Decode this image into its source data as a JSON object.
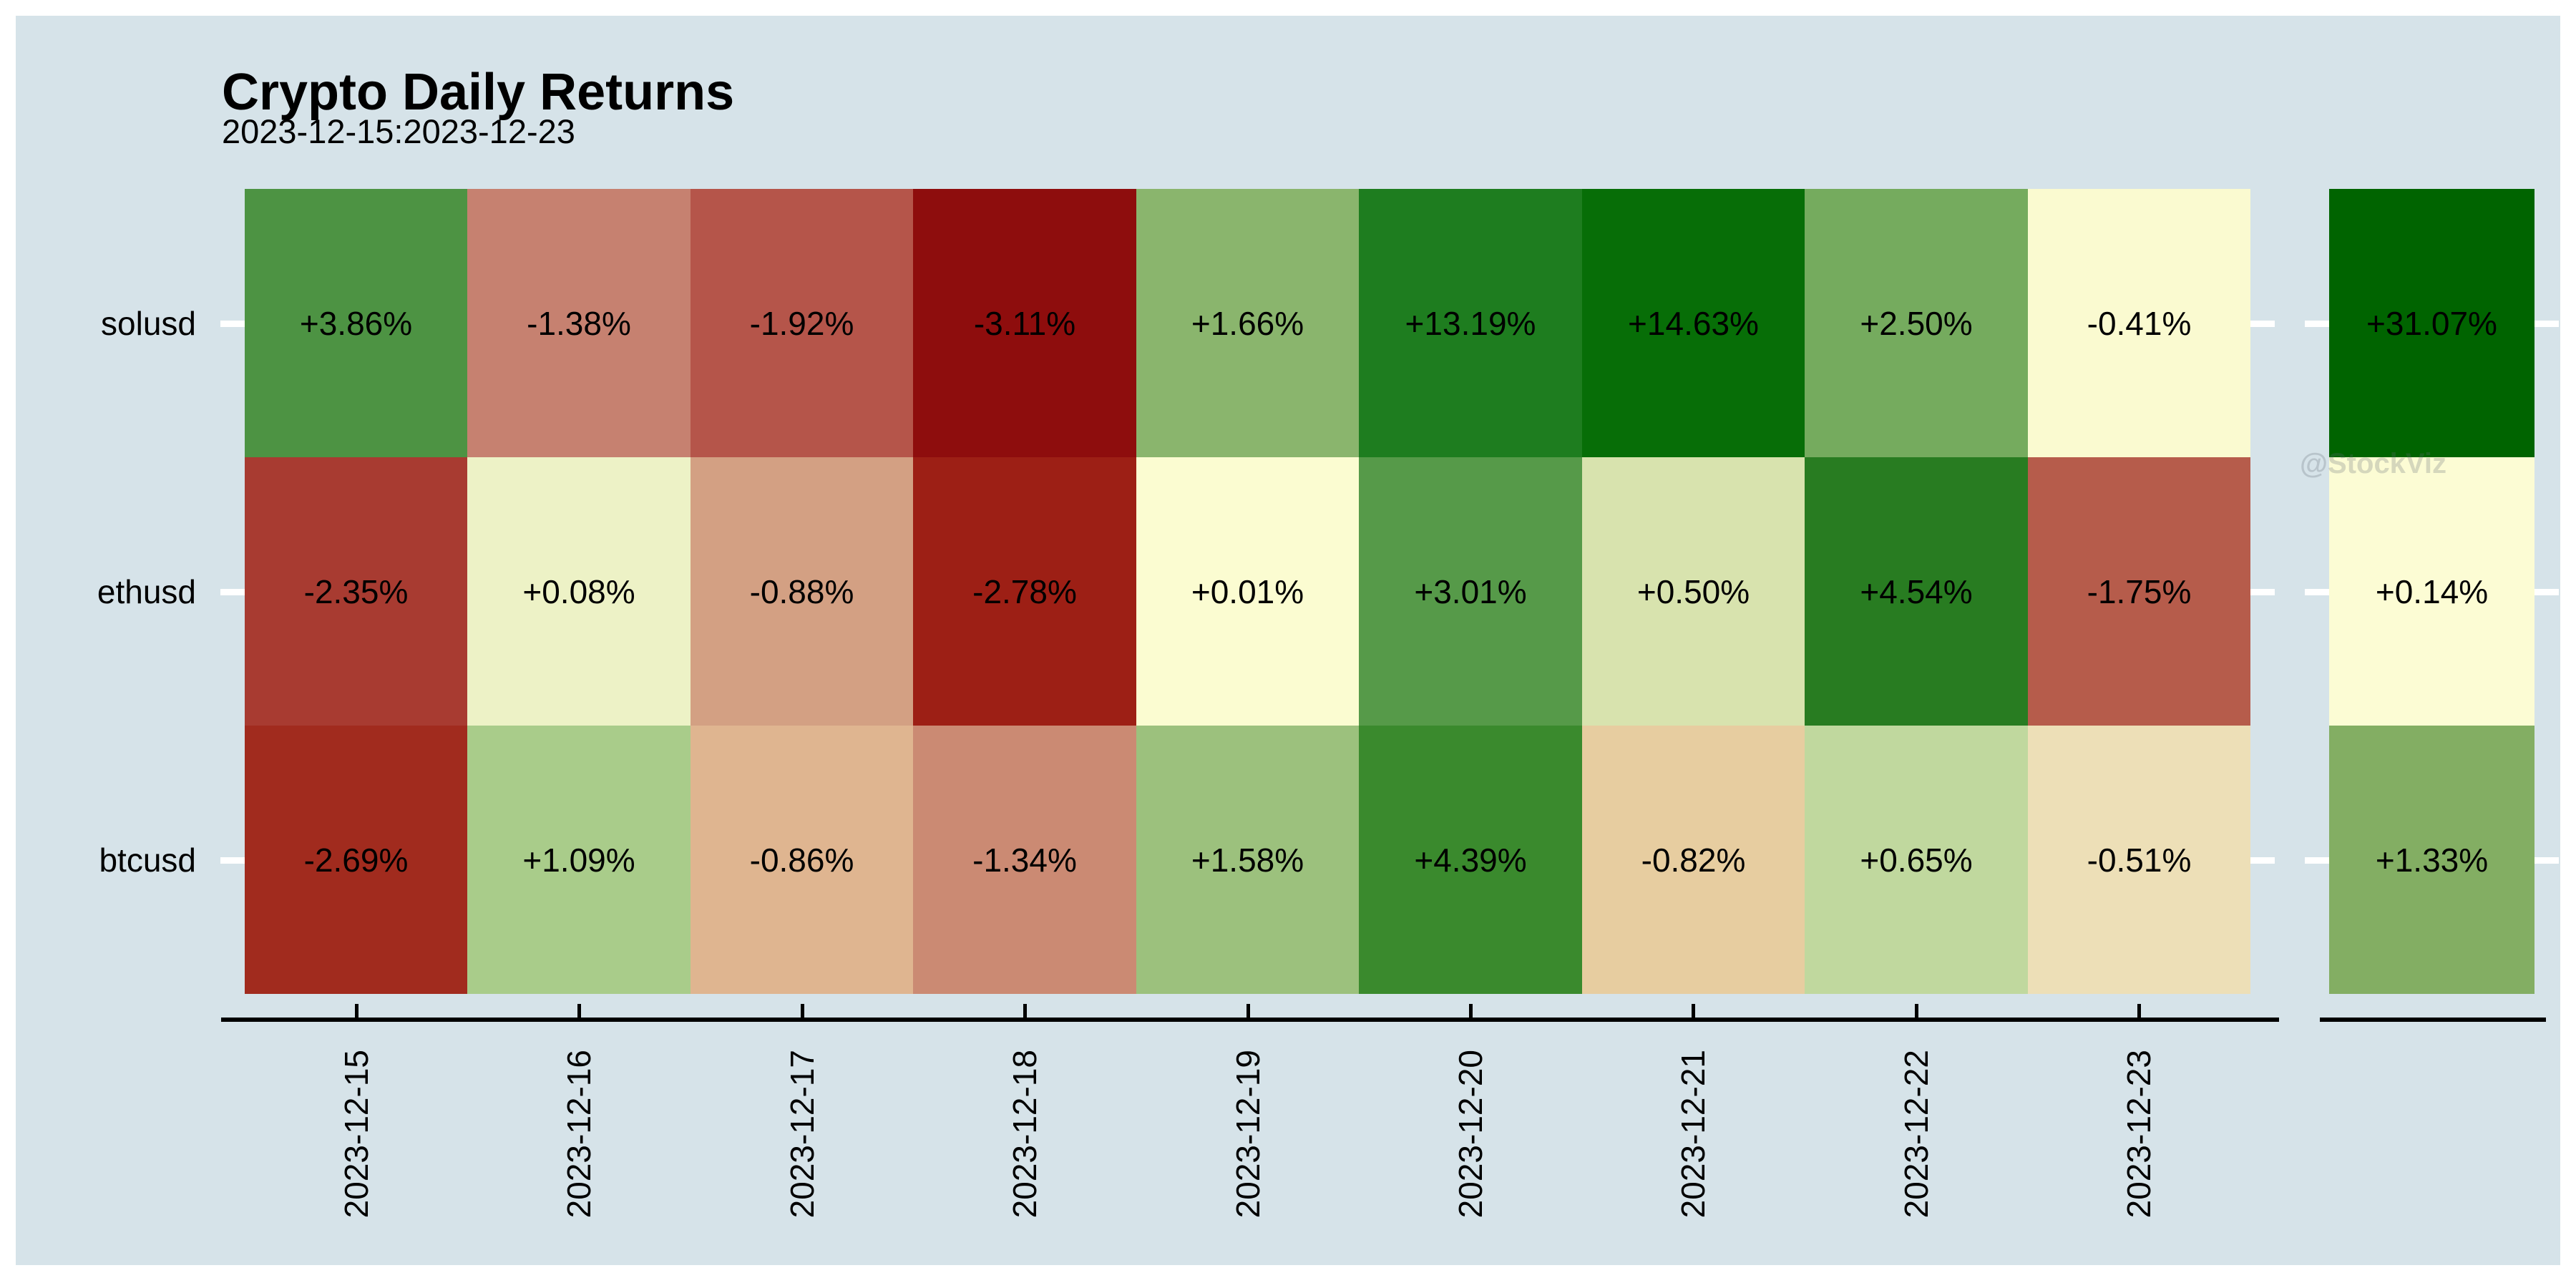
{
  "page": {
    "background": "#ffffff",
    "panel_background": "#d6e3e9"
  },
  "header": {
    "title": "Crypto Daily Returns",
    "subtitle": "2023-12-15:2023-12-23"
  },
  "watermark": "@StockViz",
  "axis": {
    "symbols": [
      "solusd",
      "ethusd",
      "btcusd"
    ],
    "dates": [
      "2023-12-15",
      "2023-12-16",
      "2023-12-17",
      "2023-12-18",
      "2023-12-19",
      "2023-12-20",
      "2023-12-21",
      "2023-12-22",
      "2023-12-23"
    ]
  },
  "heatmap": {
    "rows": [
      {
        "label": "solusd",
        "cells": [
          {
            "text": "+3.86%",
            "color": "#4d9343"
          },
          {
            "text": "-1.38%",
            "color": "#c68170"
          },
          {
            "text": "-1.92%",
            "color": "#b5554a"
          },
          {
            "text": "-3.11%",
            "color": "#8e0d0d"
          },
          {
            "text": "+1.66%",
            "color": "#8ab56d"
          },
          {
            "text": "+13.19%",
            "color": "#1e7d1f"
          },
          {
            "text": "+14.63%",
            "color": "#076e07"
          },
          {
            "text": "+2.50%",
            "color": "#75ab5e"
          },
          {
            "text": "-0.41%",
            "color": "#fafad0"
          }
        ],
        "total": {
          "text": "+31.07%",
          "color": "#006400"
        }
      },
      {
        "label": "ethusd",
        "cells": [
          {
            "text": "-2.35%",
            "color": "#a83b31"
          },
          {
            "text": "+0.08%",
            "color": "#edf2c6"
          },
          {
            "text": "-0.88%",
            "color": "#d3a083"
          },
          {
            "text": "-2.78%",
            "color": "#9d1f15"
          },
          {
            "text": "+0.01%",
            "color": "#fbfcd1"
          },
          {
            "text": "+3.01%",
            "color": "#569a49"
          },
          {
            "text": "+0.50%",
            "color": "#d8e3ae"
          },
          {
            "text": "+4.54%",
            "color": "#287c21"
          },
          {
            "text": "-1.75%",
            "color": "#b65c4b"
          }
        ],
        "total": {
          "text": "+0.14%",
          "color": "#fcfcd4"
        }
      },
      {
        "label": "btcusd",
        "cells": [
          {
            "text": "-2.69%",
            "color": "#a12b1e"
          },
          {
            "text": "+1.09%",
            "color": "#a9cc8a"
          },
          {
            "text": "-0.86%",
            "color": "#dfb590"
          },
          {
            "text": "-1.34%",
            "color": "#cb8a73"
          },
          {
            "text": "+1.58%",
            "color": "#9cc17d"
          },
          {
            "text": "+4.39%",
            "color": "#3a8a2d"
          },
          {
            "text": "-0.82%",
            "color": "#e7cda0"
          },
          {
            "text": "+0.65%",
            "color": "#c0d89e"
          },
          {
            "text": "-0.51%",
            "color": "#eddfb7"
          }
        ],
        "total": {
          "text": "+1.33%",
          "color": "#83ae63"
        }
      }
    ]
  },
  "chart_data": {
    "type": "heatmap",
    "title": "Crypto Daily Returns",
    "subtitle": "2023-12-15:2023-12-23",
    "rows": [
      "solusd",
      "ethusd",
      "btcusd"
    ],
    "columns": [
      "2023-12-15",
      "2023-12-16",
      "2023-12-17",
      "2023-12-18",
      "2023-12-19",
      "2023-12-20",
      "2023-12-21",
      "2023-12-22",
      "2023-12-23"
    ],
    "values_pct": [
      [
        3.86,
        -1.38,
        -1.92,
        -3.11,
        1.66,
        13.19,
        14.63,
        2.5,
        -0.41
      ],
      [
        -2.35,
        0.08,
        -0.88,
        -2.78,
        0.01,
        3.01,
        0.5,
        4.54,
        -1.75
      ],
      [
        -2.69,
        1.09,
        -0.86,
        -1.34,
        1.58,
        4.39,
        -0.82,
        0.65,
        -0.51
      ]
    ],
    "row_totals_pct": [
      31.07,
      0.14,
      1.33
    ],
    "colormap": "diverging red-yellow-green (negative=red, ~0=pale yellow, positive=green)",
    "legend": "none",
    "grid": false,
    "value_label_format": "signed percent with 2 decimals"
  }
}
